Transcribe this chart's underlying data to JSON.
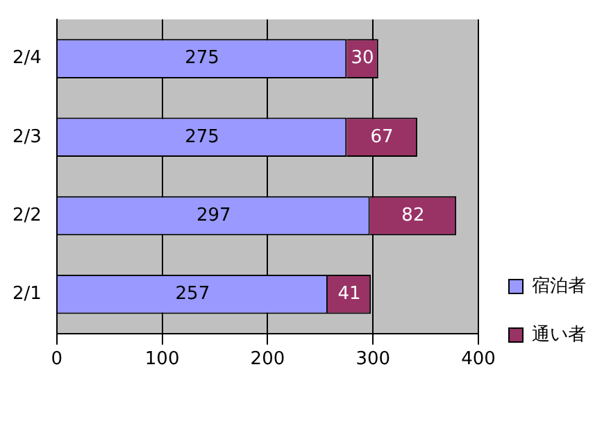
{
  "chart_data": {
    "type": "bar",
    "orientation": "horizontal",
    "stacked": true,
    "categories": [
      "2/4",
      "2/3",
      "2/2",
      "2/1"
    ],
    "series": [
      {
        "name": "宿泊者",
        "color": "#9999ff",
        "values": [
          275,
          275,
          297,
          257
        ]
      },
      {
        "name": "通い者",
        "color": "#993366",
        "values": [
          30,
          67,
          82,
          41
        ]
      }
    ],
    "xlim": [
      0,
      400
    ],
    "xticks": [
      0,
      100,
      200,
      300,
      400
    ],
    "grid": "x",
    "legend": "right",
    "data_labels": true
  }
}
